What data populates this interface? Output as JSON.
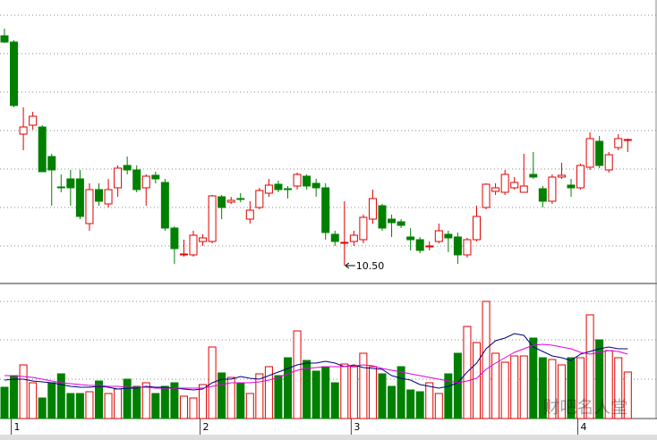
{
  "chart_data": {
    "type": "candlestick",
    "categories": [
      null,
      "1",
      null,
      null,
      null,
      null,
      null,
      null,
      null,
      null,
      null,
      null,
      null,
      null,
      null,
      null,
      null,
      null,
      null,
      null,
      null,
      "2",
      null,
      null,
      null,
      null,
      null,
      null,
      null,
      null,
      null,
      null,
      null,
      null,
      null,
      null,
      null,
      "3",
      null,
      null,
      null,
      null,
      null,
      null,
      null,
      null,
      null,
      null,
      null,
      null,
      null,
      null,
      null,
      null,
      null,
      null,
      null,
      null,
      null,
      null,
      null,
      "4",
      null,
      null,
      null,
      null,
      null
    ],
    "open": [
      13.07,
      13.0,
      11.97,
      12.07,
      12.05,
      11.72,
      11.38,
      11.47,
      11.47,
      10.97,
      11.35,
      11.19,
      11.37,
      11.62,
      11.57,
      11.37,
      11.51,
      11.43,
      10.92,
      10.62,
      10.62,
      10.77,
      10.77,
      11.27,
      11.21,
      11.25,
      11.02,
      11.15,
      11.31,
      11.41,
      11.36,
      11.39,
      11.5,
      11.42,
      11.37,
      10.85,
      10.75,
      10.77,
      10.79,
      11.02,
      11.17,
      11.02,
      10.99,
      10.82,
      10.79,
      10.71,
      10.77,
      10.85,
      10.82,
      10.62,
      10.79,
      11.15,
      11.33,
      11.32,
      11.37,
      11.32,
      11.52,
      11.36,
      11.22,
      11.49,
      11.4,
      11.37,
      11.6,
      11.89,
      11.57,
      11.82,
      11.9
    ],
    "close": [
      13.0,
      12.29,
      12.05,
      12.17,
      11.55,
      11.57,
      11.37,
      11.37,
      11.05,
      11.35,
      11.22,
      11.35,
      11.59,
      11.57,
      11.35,
      11.5,
      11.47,
      10.92,
      10.69,
      10.63,
      10.84,
      10.81,
      11.28,
      11.15,
      11.23,
      11.24,
      11.12,
      11.34,
      11.4,
      11.35,
      11.35,
      11.52,
      11.39,
      11.37,
      10.87,
      10.77,
      10.76,
      10.84,
      11.04,
      11.25,
      10.92,
      10.98,
      10.95,
      10.79,
      10.67,
      10.72,
      10.89,
      10.81,
      10.62,
      10.79,
      11.05,
      11.41,
      11.37,
      11.52,
      11.43,
      11.39,
      11.49,
      11.22,
      11.49,
      11.51,
      11.37,
      11.62,
      11.92,
      11.62,
      11.74,
      11.92,
      11.91
    ],
    "high": [
      13.15,
      13.02,
      12.27,
      12.22,
      12.07,
      11.75,
      11.52,
      11.57,
      11.57,
      11.42,
      11.42,
      11.47,
      11.62,
      11.72,
      11.62,
      11.52,
      11.55,
      11.47,
      10.94,
      10.79,
      10.89,
      10.85,
      11.29,
      11.29,
      11.27,
      11.31,
      11.22,
      11.37,
      11.47,
      11.45,
      11.39,
      11.54,
      11.52,
      11.47,
      11.42,
      10.89,
      11.22,
      10.89,
      11.07,
      11.35,
      11.19,
      11.07,
      11.02,
      10.92,
      10.82,
      10.77,
      10.97,
      10.89,
      10.87,
      10.81,
      11.17,
      11.42,
      11.42,
      11.57,
      11.49,
      11.75,
      11.77,
      11.39,
      11.52,
      11.65,
      11.47,
      11.64,
      11.99,
      11.95,
      11.77,
      11.97,
      11.92
    ],
    "low": [
      12.99,
      12.27,
      11.79,
      12.02,
      11.55,
      11.17,
      11.32,
      11.17,
      11.02,
      10.89,
      11.17,
      11.15,
      11.27,
      11.52,
      11.32,
      11.17,
      11.42,
      10.89,
      10.52,
      10.6,
      10.6,
      10.72,
      10.75,
      11.02,
      11.19,
      11.21,
      10.97,
      11.13,
      11.27,
      11.32,
      11.25,
      11.35,
      11.35,
      11.27,
      10.79,
      10.72,
      10.5,
      10.72,
      10.75,
      10.97,
      10.89,
      10.82,
      10.92,
      10.67,
      10.64,
      10.67,
      10.75,
      10.65,
      10.52,
      10.59,
      10.77,
      11.13,
      11.29,
      11.29,
      11.35,
      11.32,
      11.47,
      11.15,
      11.19,
      11.47,
      11.27,
      11.35,
      11.57,
      11.59,
      11.54,
      11.79,
      11.77
    ],
    "low_label": {
      "index": 36,
      "text": "10.50"
    },
    "up_color": "#e00000",
    "down_color": "#008000",
    "ylim": [
      10.32,
      13.47
    ],
    "grid_levels": [
      13.3,
      12.87,
      12.44,
      12.01,
      11.58,
      11.15,
      10.72
    ],
    "volume": {
      "values": [
        35,
        48,
        60,
        40,
        23,
        40,
        50,
        28,
        28,
        30,
        42,
        28,
        33,
        44,
        36,
        40,
        28,
        36,
        40,
        25,
        23,
        38,
        80,
        51,
        46,
        40,
        28,
        50,
        58,
        48,
        68,
        98,
        65,
        53,
        58,
        40,
        61,
        58,
        73,
        58,
        50,
        36,
        58,
        32,
        30,
        40,
        28,
        50,
        73,
        103,
        85,
        131,
        73,
        63,
        70,
        70,
        90,
        68,
        66,
        60,
        68,
        68,
        116,
        88,
        76,
        68,
        52
      ],
      "ylim": [
        0,
        150
      ],
      "grid_levels": [
        44,
        88,
        131
      ],
      "averages": [
        {
          "color": "#000080",
          "values": [
            43,
            44,
            44,
            42,
            41,
            40,
            38,
            36,
            35,
            35,
            36,
            35,
            33,
            34,
            34,
            36,
            35,
            35,
            34,
            33,
            32,
            33,
            40,
            44,
            44,
            47,
            45,
            44,
            48,
            52,
            56,
            60,
            62,
            62,
            64,
            62,
            58,
            60,
            57,
            56,
            55,
            48,
            45,
            43,
            38,
            36,
            34,
            36,
            40,
            52,
            62,
            78,
            87,
            90,
            95,
            93,
            80,
            75,
            70,
            68,
            65,
            72,
            75,
            78,
            80,
            78,
            78
          ]
        },
        {
          "color": "#e000e0",
          "values": [
            48,
            48,
            47,
            46,
            44,
            42,
            40,
            39,
            38,
            37,
            37,
            36,
            36,
            35,
            35,
            35,
            34,
            34,
            34,
            34,
            34,
            34,
            36,
            38,
            40,
            40,
            40,
            41,
            43,
            46,
            50,
            54,
            56,
            57,
            58,
            58,
            58,
            59,
            60,
            59,
            56,
            54,
            52,
            50,
            48,
            46,
            44,
            42,
            40,
            42,
            45,
            55,
            62,
            68,
            74,
            78,
            82,
            83,
            82,
            80,
            78,
            74,
            72,
            74,
            76,
            75,
            72
          ]
        }
      ]
    },
    "watermark": "财吧名人堂"
  }
}
